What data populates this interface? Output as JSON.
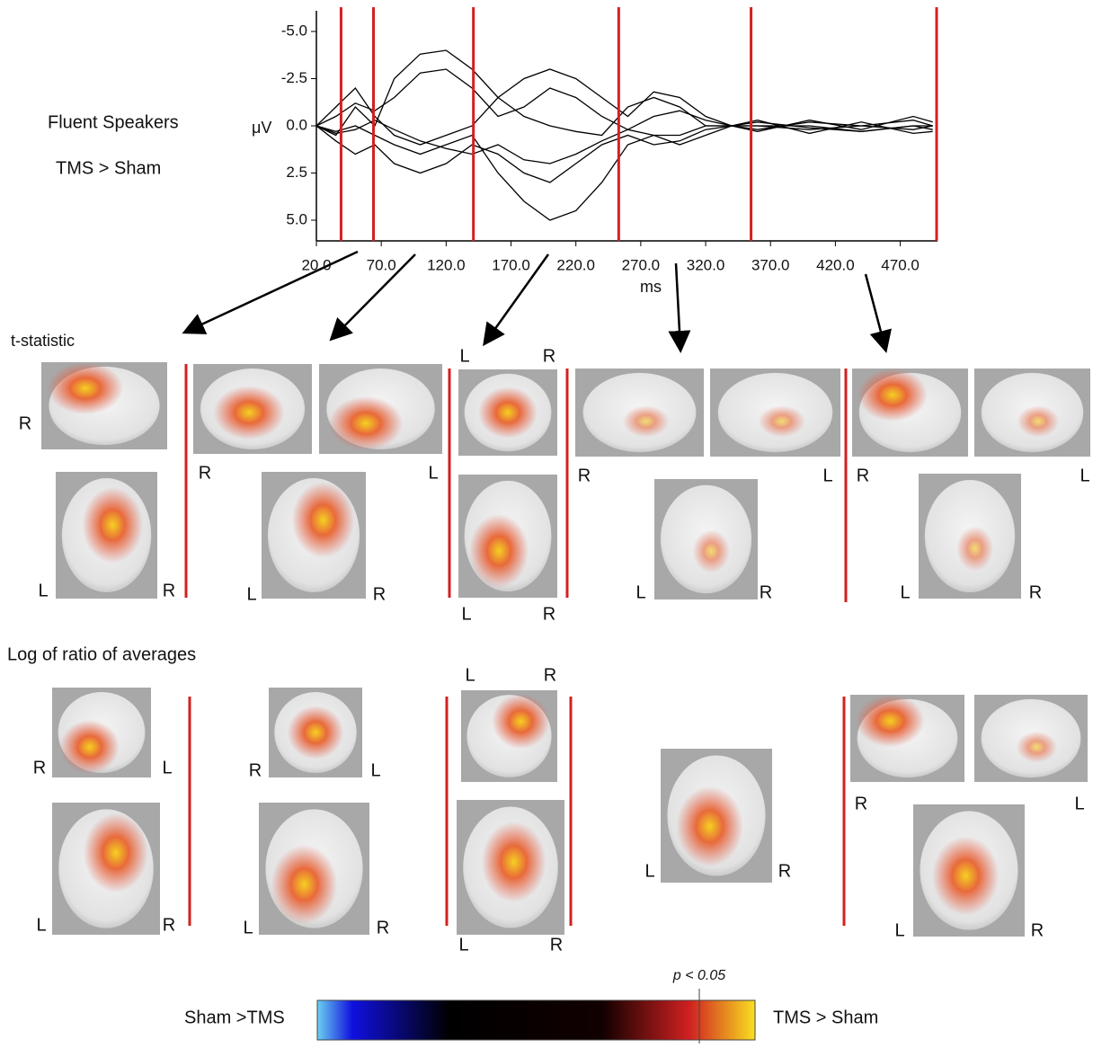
{
  "chart_data": {
    "type": "line",
    "title": "Fluent Speakers",
    "subtitle": "TMS > Sham",
    "y_label": "μV",
    "x_label": "ms",
    "x": [
      20,
      35,
      50,
      65,
      80,
      100,
      120,
      140,
      160,
      180,
      200,
      220,
      240,
      260,
      280,
      300,
      320,
      340,
      360,
      400,
      440,
      480,
      495
    ],
    "series": [
      {
        "values": [
          0,
          0.5,
          -1,
          0,
          -2.5,
          -3.8,
          -4,
          -3,
          -1.5,
          -0.5,
          0,
          0.3,
          0.5,
          -1,
          -1.5,
          -1,
          0,
          0,
          0,
          0.2,
          0,
          -0.3,
          0
        ]
      },
      {
        "values": [
          0,
          0.3,
          0,
          0.5,
          1,
          1.5,
          1,
          0.5,
          2.5,
          4,
          5,
          4.5,
          3,
          1,
          0.5,
          0.5,
          0,
          0,
          0,
          0,
          0.3,
          0,
          0
        ]
      },
      {
        "values": [
          0,
          -1,
          -2,
          -0.5,
          0.5,
          1,
          0.5,
          0,
          -1.5,
          -2.5,
          -3,
          -2.5,
          -1.5,
          -0.5,
          -1.8,
          -1.5,
          -0.5,
          0,
          0.2,
          -0.2,
          0,
          0.2,
          0
        ]
      },
      {
        "values": [
          0,
          0.8,
          1.5,
          1,
          2,
          2.5,
          2,
          1,
          1.5,
          2.5,
          3,
          2,
          1,
          0.5,
          1,
          0.8,
          0.2,
          0,
          -0.2,
          0.1,
          0.3,
          0,
          0.2
        ]
      },
      {
        "values": [
          0,
          -0.5,
          -1.2,
          -0.8,
          -1.5,
          -2.8,
          -3,
          -2,
          -0.5,
          -1,
          -2,
          -1.5,
          -0.5,
          0.2,
          -0.5,
          -0.8,
          -0.3,
          0,
          0.3,
          -0.3,
          0.2,
          -0.5,
          -0.2
        ]
      },
      {
        "values": [
          0,
          0.4,
          0.2,
          -0.3,
          0.2,
          0.8,
          1.2,
          1.5,
          1,
          1.8,
          2,
          1.5,
          0.8,
          0.2,
          0.5,
          1,
          0.5,
          0,
          -0.3,
          0.4,
          -0.2,
          0.4,
          0.3
        ]
      }
    ],
    "color": "#000000",
    "xlim": [
      20,
      498
    ],
    "ylim": [
      6,
      -6
    ],
    "xticks": [
      {
        "value": 20,
        "label": "20.0"
      },
      {
        "value": 70,
        "label": "70.0"
      },
      {
        "value": 120,
        "label": "120.0"
      },
      {
        "value": 170,
        "label": "170.0"
      },
      {
        "value": 220,
        "label": "220.0"
      },
      {
        "value": 270,
        "label": "270.0"
      },
      {
        "value": 320,
        "label": "320.0"
      },
      {
        "value": 370,
        "label": "370.0"
      },
      {
        "value": 420,
        "label": "420.0"
      },
      {
        "value": 470,
        "label": "470.0"
      }
    ],
    "yticks": [
      {
        "value": -5,
        "label": "-5.0"
      },
      {
        "value": -2.5,
        "label": "-2.5"
      },
      {
        "value": 0,
        "label": "0.0"
      },
      {
        "value": 2.5,
        "label": "2.5"
      },
      {
        "value": 5,
        "label": "5.0"
      }
    ],
    "markers": {
      "x": [
        39,
        64,
        141,
        253,
        355,
        498
      ],
      "color": "#d42020"
    }
  },
  "t_statistic": {
    "title": "t-statistic",
    "labels": [
      "R",
      "L",
      "R",
      "R",
      "L",
      "L",
      "R",
      "L",
      "R",
      "L",
      "R",
      "R",
      "L",
      "L",
      "R",
      "R",
      "L",
      "L",
      "R"
    ]
  },
  "log_ratio": {
    "title": "Log of ratio of averages",
    "labels": [
      "R",
      "L",
      "L",
      "R",
      "R",
      "L",
      "L",
      "R",
      "L",
      "R",
      "L",
      "R",
      "L",
      "R",
      "R",
      "L",
      "L",
      "R"
    ]
  },
  "colorbar": {
    "left": "Sham >TMS",
    "right": "TMS > Sham",
    "threshold": "p < 0.05"
  }
}
